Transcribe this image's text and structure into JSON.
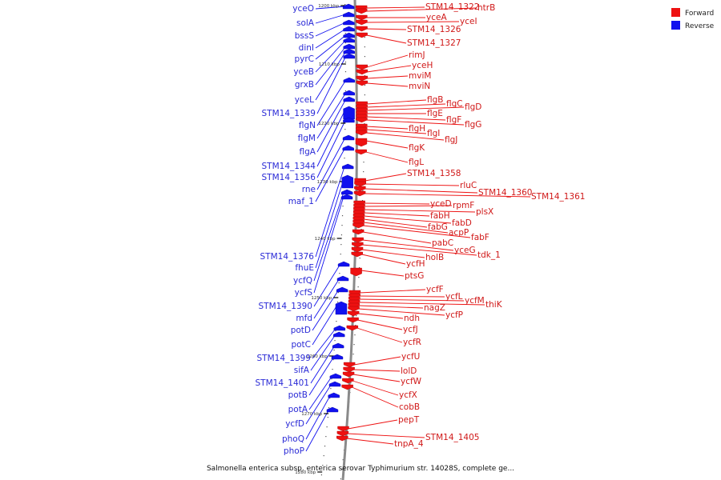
{
  "legend": {
    "forward_label": "Forward",
    "reverse_label": "Reverse",
    "forward_color": "#ee1111",
    "reverse_color": "#1111ee"
  },
  "caption": "Salmonella enterica subsp. enterica serovar Typhimurium str. 14028S, complete ge...",
  "scale_labels": [
    "1200 kbp",
    "1210 kbp",
    "1220 kbp",
    "1230 kbp",
    "1240 kbp",
    "1250 kbp",
    "1260 kbp",
    "1270 kbp",
    "1280 kbp"
  ],
  "reverse_genes": [
    "yceO",
    "solA",
    "bssS",
    "dinI",
    "pyrC",
    "yceB",
    "grxB",
    "yceL",
    "STM14_1339",
    "flgN",
    "flgM",
    "flgA",
    "STM14_1344",
    "STM14_1356",
    "rne",
    "maf_1",
    "STM14_1376",
    "fhuE",
    "ycfQ",
    "ycfS",
    "STM14_1390",
    "mfd",
    "potD",
    "potC",
    "STM14_1399",
    "sifA",
    "STM14_1401",
    "potB",
    "potA",
    "ycfD",
    "phoQ",
    "phoP"
  ],
  "forward_genes": [
    "STM14_1322",
    "htrB",
    "yceA",
    "yceI",
    "STM14_1326",
    "STM14_1327",
    "rimJ",
    "yceH",
    "mviM",
    "mviN",
    "flgB",
    "flgC",
    "flgD",
    "flgE",
    "flgF",
    "flgG",
    "flgH",
    "flgI",
    "flgJ",
    "flgK",
    "flgL",
    "STM14_1358",
    "rluC",
    "STM14_1360",
    "STM14_1361",
    "yceD",
    "rpmF",
    "plsX",
    "fabH",
    "fabD",
    "fabG",
    "acpP",
    "fabF",
    "pabC",
    "yceG",
    "tdk_1",
    "holB",
    "ycfH",
    "ptsG",
    "ycfF",
    "ycfL",
    "ycfM",
    "thiK",
    "nagZ",
    "ycfP",
    "ndh",
    "ycfJ",
    "ycfR",
    "ycfU",
    "lolD",
    "ycfW",
    "ycfX",
    "cobB",
    "pepT",
    "STM14_1405",
    "tnpA_4"
  ]
}
